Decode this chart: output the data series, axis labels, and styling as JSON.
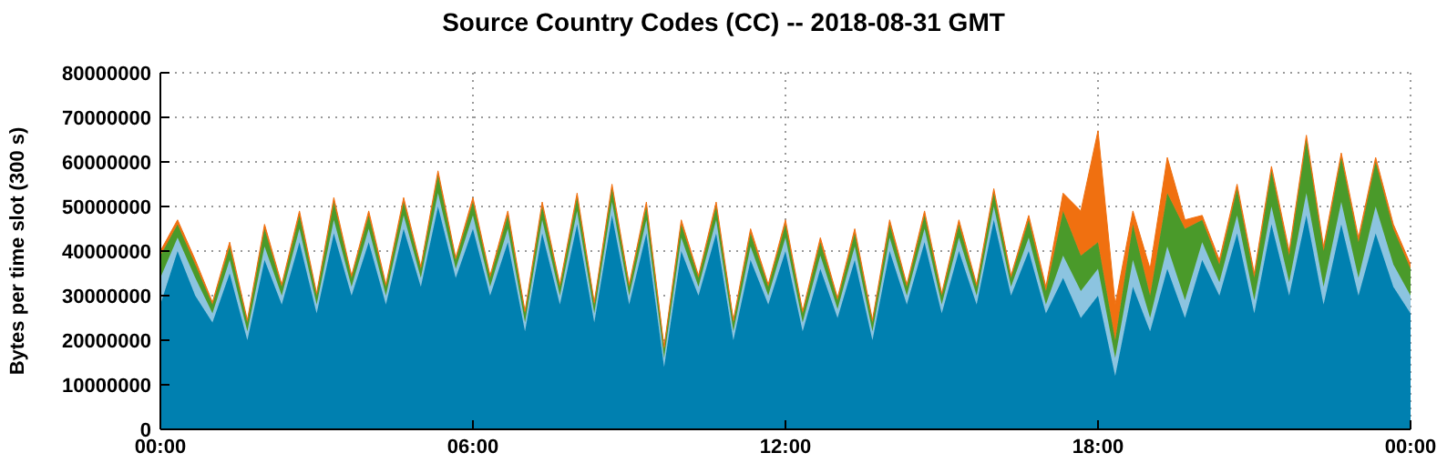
{
  "chart_data": {
    "type": "area",
    "title": "Source Country Codes (CC) -- 2018-08-31 GMT",
    "ylabel": "Bytes per time slot (300 s)",
    "stacked": true,
    "grid": true,
    "x": [
      0,
      0.33,
      0.67,
      1,
      1.33,
      1.67,
      2,
      2.33,
      2.67,
      3,
      3.33,
      3.67,
      4,
      4.33,
      4.67,
      5,
      5.33,
      5.67,
      6,
      6.33,
      6.67,
      7,
      7.33,
      7.67,
      8,
      8.33,
      8.67,
      9,
      9.33,
      9.67,
      10,
      10.33,
      10.67,
      11,
      11.33,
      11.67,
      12,
      12.33,
      12.67,
      13,
      13.33,
      13.67,
      14,
      14.33,
      14.67,
      15,
      15.33,
      15.67,
      16,
      16.33,
      16.67,
      17,
      17.33,
      17.67,
      18,
      18.33,
      18.67,
      19,
      19.33,
      19.67,
      20,
      20.33,
      20.67,
      21,
      21.33,
      21.67,
      22,
      22.33,
      22.67,
      23,
      23.33,
      23.67,
      24
    ],
    "xlim": [
      0,
      24
    ],
    "xticks": [
      {
        "value": 0,
        "label": "00:00"
      },
      {
        "value": 6,
        "label": "06:00"
      },
      {
        "value": 12,
        "label": "12:00"
      },
      {
        "value": 18,
        "label": "18:00"
      },
      {
        "value": 24,
        "label": "00:00"
      }
    ],
    "ylim": [
      0,
      80000000
    ],
    "yticks": [
      0,
      10000000,
      20000000,
      30000000,
      40000000,
      50000000,
      60000000,
      70000000,
      80000000
    ],
    "series": [
      {
        "color": "#0080b0",
        "values": [
          28000000,
          40000000,
          30000000,
          24000000,
          35000000,
          20000000,
          38000000,
          28000000,
          42000000,
          26000000,
          44000000,
          30000000,
          42000000,
          28000000,
          45000000,
          32000000,
          50000000,
          34000000,
          45000000,
          30000000,
          42000000,
          22000000,
          44000000,
          28000000,
          46000000,
          24000000,
          48000000,
          28000000,
          44000000,
          14000000,
          40000000,
          30000000,
          44000000,
          20000000,
          38000000,
          28000000,
          40000000,
          22000000,
          36000000,
          25000000,
          38000000,
          20000000,
          40000000,
          28000000,
          42000000,
          26000000,
          40000000,
          28000000,
          47000000,
          30000000,
          40000000,
          26000000,
          34000000,
          25000000,
          30000000,
          12000000,
          32000000,
          22000000,
          36000000,
          25000000,
          38000000,
          30000000,
          44000000,
          26000000,
          46000000,
          30000000,
          48000000,
          28000000,
          46000000,
          30000000,
          44000000,
          32000000,
          26000000
        ]
      },
      {
        "color": "#8cc4e0",
        "values": [
          6000000,
          3000000,
          4000000,
          2000000,
          3000000,
          2000000,
          3000000,
          2000000,
          3000000,
          2000000,
          3000000,
          2000000,
          3000000,
          2000000,
          3000000,
          2000000,
          3000000,
          2000000,
          3000000,
          2000000,
          3000000,
          2000000,
          3000000,
          2000000,
          3000000,
          2000000,
          3000000,
          2000000,
          3000000,
          2000000,
          3000000,
          2000000,
          3000000,
          2000000,
          3000000,
          2000000,
          3000000,
          2000000,
          3000000,
          2000000,
          3000000,
          2000000,
          3000000,
          2000000,
          3000000,
          2000000,
          3000000,
          2000000,
          3000000,
          2000000,
          3000000,
          2000000,
          5000000,
          6000000,
          6000000,
          4000000,
          6000000,
          3000000,
          5000000,
          4000000,
          4000000,
          3000000,
          4000000,
          3000000,
          4000000,
          3000000,
          5000000,
          4000000,
          5000000,
          4000000,
          6000000,
          5000000,
          4000000
        ]
      },
      {
        "color": "#4a9a2a",
        "values": [
          5000000,
          3000000,
          3000000,
          2000000,
          3000000,
          2000000,
          4000000,
          2000000,
          3000000,
          2000000,
          4000000,
          2000000,
          3000000,
          2000000,
          3000000,
          2000000,
          4000000,
          2000000,
          3000000,
          2000000,
          3000000,
          2000000,
          3000000,
          2000000,
          3000000,
          2000000,
          3000000,
          2000000,
          3000000,
          2000000,
          3000000,
          2000000,
          3000000,
          2000000,
          3000000,
          2000000,
          3000000,
          2000000,
          3000000,
          2000000,
          3000000,
          2000000,
          3000000,
          2000000,
          3000000,
          2000000,
          3000000,
          2000000,
          3000000,
          2000000,
          4000000,
          3000000,
          10000000,
          8000000,
          6000000,
          4000000,
          8000000,
          5000000,
          12000000,
          16000000,
          5000000,
          4000000,
          6000000,
          5000000,
          8000000,
          6000000,
          12000000,
          8000000,
          10000000,
          8000000,
          10000000,
          8000000,
          6000000
        ]
      },
      {
        "color": "#f07010",
        "values": [
          1000000,
          1000000,
          1000000,
          500000,
          1000000,
          500000,
          1000000,
          500000,
          1000000,
          500000,
          1000000,
          500000,
          1000000,
          500000,
          1000000,
          500000,
          1000000,
          500000,
          1000000,
          500000,
          1000000,
          500000,
          1000000,
          500000,
          1000000,
          500000,
          1000000,
          500000,
          1000000,
          500000,
          1000000,
          500000,
          1000000,
          500000,
          1000000,
          500000,
          1000000,
          500000,
          1000000,
          500000,
          1000000,
          500000,
          1000000,
          500000,
          1000000,
          500000,
          1000000,
          500000,
          1000000,
          500000,
          1000000,
          1000000,
          4000000,
          10000000,
          25000000,
          8000000,
          3000000,
          6000000,
          8000000,
          2000000,
          1000000,
          1000000,
          1000000,
          1000000,
          1000000,
          1000000,
          1000000,
          1000000,
          1000000,
          1000000,
          1000000,
          1000000,
          1000000
        ]
      }
    ]
  }
}
